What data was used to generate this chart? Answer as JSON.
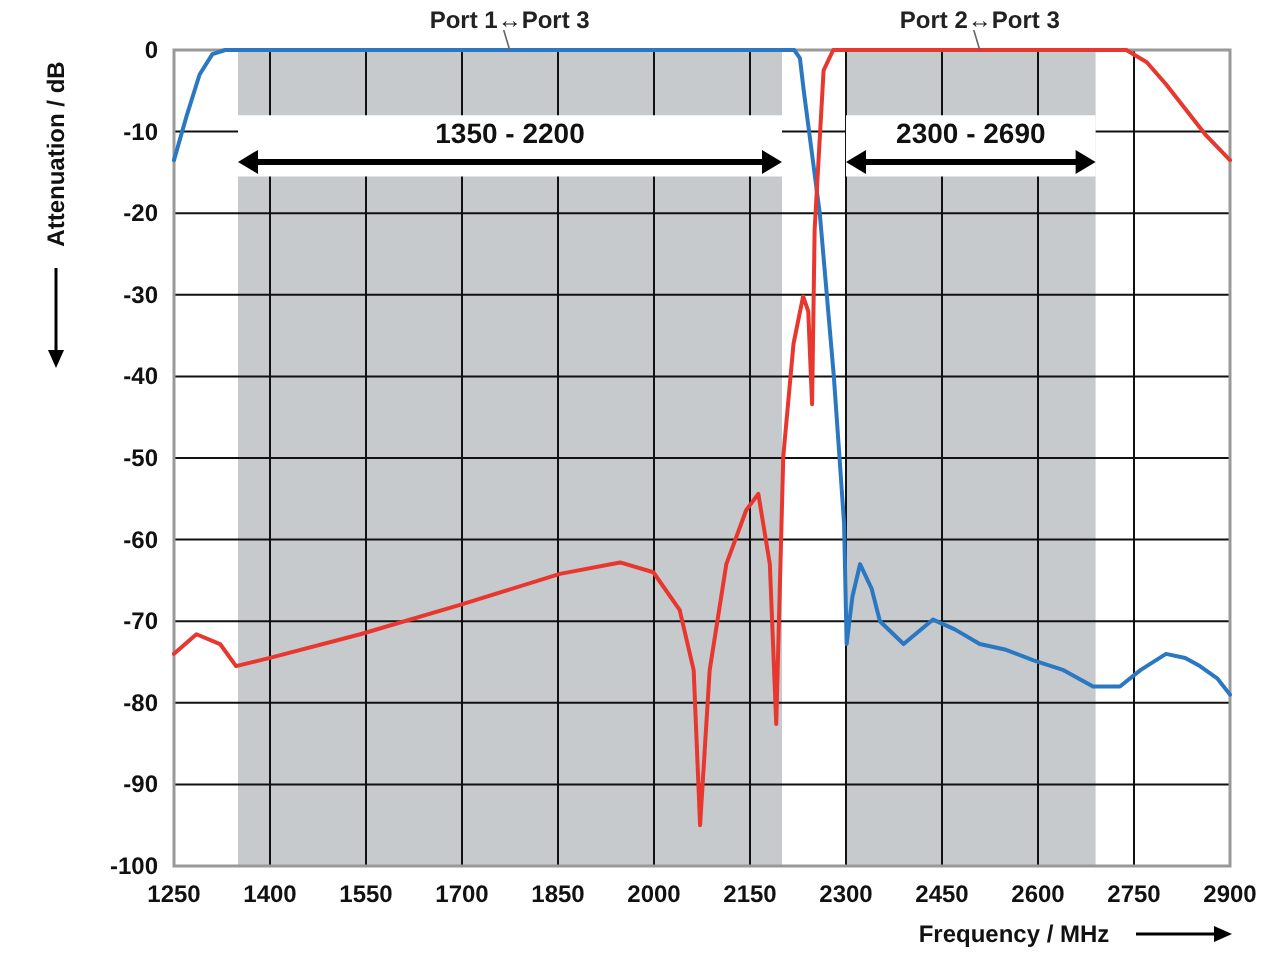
{
  "chart_data": {
    "type": "line",
    "xlabel": "Frequency / MHz",
    "ylabel": "Attenuation / dB",
    "xlim": [
      1250,
      2900
    ],
    "xticks": [
      1250,
      1400,
      1550,
      1700,
      1850,
      2000,
      2150,
      2300,
      2450,
      2600,
      2750,
      2900
    ],
    "ylim": [
      -100,
      0
    ],
    "yticks": [
      -100,
      -90,
      -80,
      -70,
      -60,
      -50,
      -40,
      -30,
      -20,
      -10,
      0
    ],
    "grid": true,
    "marker": "none",
    "line_style": "solid",
    "bands": [
      {
        "axis": "x",
        "from": 1350,
        "to": 2200,
        "label": "1350 - 2200",
        "color": "#c6cacd"
      },
      {
        "axis": "x",
        "from": 2300,
        "to": 2690,
        "label": "2300 - 2690",
        "color": "#c6cacd"
      }
    ],
    "series": [
      {
        "name": "Port 1↔Port 3",
        "color": "#2b78c2",
        "x": [
          1250,
          1270,
          1290,
          1310,
          1330,
          1500,
          1700,
          1900,
          2100,
          2219,
          2228,
          2234,
          2259,
          2281,
          2297,
          2301,
          2310,
          2322,
          2340,
          2353,
          2390,
          2436,
          2470,
          2509,
          2550,
          2593,
          2640,
          2686,
          2728,
          2760,
          2800,
          2830,
          2853,
          2880,
          2900
        ],
        "values": [
          -13.5,
          -8,
          -3,
          -0.5,
          0,
          0,
          0,
          0,
          0,
          0,
          -1,
          -5,
          -20,
          -40,
          -58,
          -72.8,
          -67,
          -63,
          -66,
          -70,
          -72.8,
          -69.8,
          -71,
          -72.8,
          -73.5,
          -74.8,
          -76,
          -78,
          -78,
          -76,
          -74,
          -74.5,
          -75.5,
          -77,
          -79
        ]
      },
      {
        "name": "Port 2↔Port 3",
        "color": "#e8372e",
        "x": [
          1250,
          1285,
          1322,
          1347,
          1400,
          1541,
          1697,
          1853,
          1947,
          1999,
          2040,
          2062,
          2072,
          2087,
          2113,
          2144,
          2163,
          2181,
          2191,
          2202,
          2218,
          2233,
          2241,
          2247,
          2251,
          2265,
          2280,
          2500,
          2738,
          2770,
          2800,
          2863,
          2900
        ],
        "values": [
          -74,
          -71.6,
          -72.8,
          -75.5,
          -74.5,
          -71.6,
          -68,
          -64.2,
          -62.8,
          -64,
          -68.6,
          -76,
          -95,
          -76,
          -63,
          -56.4,
          -54.4,
          -63,
          -82.6,
          -49.8,
          -36,
          -30.2,
          -32,
          -43.4,
          -22,
          -2.5,
          0,
          0,
          0,
          -1.5,
          -4.2,
          -10.5,
          -13.5
        ]
      }
    ]
  }
}
